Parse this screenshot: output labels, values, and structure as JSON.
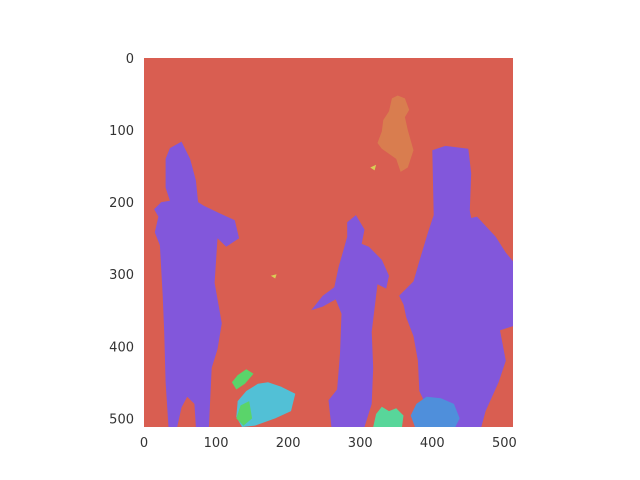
{
  "chart_data": {
    "type": "heatmap",
    "title": "",
    "xlabel": "",
    "ylabel": "",
    "xlim": [
      0,
      512
    ],
    "ylim": [
      512,
      0
    ],
    "grid": false,
    "x_ticks": [
      "0",
      "100",
      "200",
      "300",
      "400",
      "500"
    ],
    "y_ticks": [
      "0",
      "100",
      "200",
      "300",
      "400",
      "500"
    ],
    "x_tick_values": [
      0,
      100,
      200,
      300,
      400,
      500
    ],
    "y_tick_values": [
      0,
      100,
      200,
      300,
      400,
      500
    ],
    "palette": {
      "background": "#d95e51",
      "person": "#8257db",
      "upper_figure": "#d97d4f",
      "object_cyan": "#52c0d6",
      "object_green": "#5ad46a",
      "object_blue": "#4f8fdb",
      "object_mint": "#58d69a",
      "object_yellow": "#d9cf56"
    },
    "regions": [
      {
        "label": "person",
        "color": "person",
        "points": [
          [
            36,
            125
          ],
          [
            52,
            116
          ],
          [
            64,
            140
          ],
          [
            72,
            170
          ],
          [
            75,
            200
          ],
          [
            83,
            205
          ],
          [
            104,
            215
          ],
          [
            126,
            225
          ],
          [
            132,
            250
          ],
          [
            114,
            262
          ],
          [
            102,
            250
          ],
          [
            98,
            312
          ],
          [
            108,
            368
          ],
          [
            102,
            404
          ],
          [
            94,
            430
          ],
          [
            90,
            512
          ],
          [
            72,
            512
          ],
          [
            70,
            480
          ],
          [
            60,
            470
          ],
          [
            52,
            485
          ],
          [
            46,
            512
          ],
          [
            34,
            512
          ],
          [
            30,
            450
          ],
          [
            28,
            380
          ],
          [
            26,
            330
          ],
          [
            22,
            260
          ],
          [
            15,
            242
          ],
          [
            20,
            220
          ],
          [
            14,
            210
          ],
          [
            24,
            200
          ],
          [
            36,
            198
          ],
          [
            30,
            180
          ],
          [
            30,
            140
          ]
        ]
      },
      {
        "label": "person",
        "color": "person",
        "points": [
          [
            282,
            228
          ],
          [
            294,
            218
          ],
          [
            306,
            238
          ],
          [
            302,
            258
          ],
          [
            312,
            262
          ],
          [
            330,
            280
          ],
          [
            340,
            302
          ],
          [
            336,
            320
          ],
          [
            324,
            314
          ],
          [
            322,
            330
          ],
          [
            316,
            380
          ],
          [
            318,
            430
          ],
          [
            316,
            480
          ],
          [
            306,
            512
          ],
          [
            260,
            512
          ],
          [
            256,
            475
          ],
          [
            268,
            460
          ],
          [
            272,
            410
          ],
          [
            274,
            355
          ],
          [
            266,
            335
          ],
          [
            248,
            345
          ],
          [
            232,
            350
          ],
          [
            248,
            330
          ],
          [
            264,
            318
          ],
          [
            270,
            290
          ],
          [
            278,
            262
          ],
          [
            282,
            248
          ]
        ]
      },
      {
        "label": "person",
        "color": "person",
        "points": [
          [
            400,
            128
          ],
          [
            418,
            122
          ],
          [
            450,
            126
          ],
          [
            454,
            160
          ],
          [
            452,
            212
          ],
          [
            454,
            222
          ],
          [
            462,
            220
          ],
          [
            488,
            248
          ],
          [
            502,
            270
          ],
          [
            512,
            282
          ],
          [
            512,
            372
          ],
          [
            494,
            378
          ],
          [
            502,
            420
          ],
          [
            492,
            450
          ],
          [
            474,
            490
          ],
          [
            468,
            512
          ],
          [
            420,
            512
          ],
          [
            398,
            496
          ],
          [
            382,
            462
          ],
          [
            380,
            420
          ],
          [
            374,
            386
          ],
          [
            364,
            360
          ],
          [
            360,
            342
          ],
          [
            354,
            330
          ],
          [
            374,
            310
          ],
          [
            382,
            282
          ],
          [
            394,
            242
          ],
          [
            402,
            218
          ]
        ]
      },
      {
        "label": "upper_figure",
        "color": "upper_figure",
        "points": [
          [
            340,
            74
          ],
          [
            344,
            56
          ],
          [
            352,
            52
          ],
          [
            362,
            56
          ],
          [
            368,
            72
          ],
          [
            362,
            82
          ],
          [
            366,
            100
          ],
          [
            374,
            128
          ],
          [
            366,
            152
          ],
          [
            356,
            158
          ],
          [
            350,
            140
          ],
          [
            330,
            126
          ],
          [
            324,
            118
          ],
          [
            330,
            102
          ],
          [
            332,
            86
          ]
        ]
      },
      {
        "label": "object_cyan",
        "color": "object_cyan",
        "points": [
          [
            130,
            476
          ],
          [
            142,
            462
          ],
          [
            158,
            452
          ],
          [
            172,
            450
          ],
          [
            190,
            456
          ],
          [
            210,
            466
          ],
          [
            204,
            490
          ],
          [
            182,
            500
          ],
          [
            154,
            510
          ],
          [
            136,
            512
          ],
          [
            128,
            498
          ]
        ]
      },
      {
        "label": "object_green",
        "color": "object_green",
        "points": [
          [
            122,
            450
          ],
          [
            130,
            440
          ],
          [
            142,
            432
          ],
          [
            152,
            438
          ],
          [
            140,
            452
          ],
          [
            128,
            460
          ]
        ]
      },
      {
        "label": "object_green",
        "color": "object_green",
        "points": [
          [
            134,
            482
          ],
          [
            146,
            476
          ],
          [
            150,
            500
          ],
          [
            138,
            510
          ],
          [
            128,
            500
          ]
        ]
      },
      {
        "label": "object_blue",
        "color": "object_blue",
        "points": [
          [
            378,
            480
          ],
          [
            392,
            470
          ],
          [
            412,
            472
          ],
          [
            430,
            480
          ],
          [
            438,
            500
          ],
          [
            432,
            512
          ],
          [
            376,
            512
          ],
          [
            370,
            496
          ]
        ]
      },
      {
        "label": "object_mint",
        "color": "object_mint",
        "points": [
          [
            322,
            494
          ],
          [
            330,
            484
          ],
          [
            340,
            490
          ],
          [
            350,
            486
          ],
          [
            360,
            496
          ],
          [
            358,
            512
          ],
          [
            318,
            512
          ]
        ]
      },
      {
        "label": "object_yellow",
        "color": "object_yellow",
        "points": [
          [
            314,
            152
          ],
          [
            322,
            148
          ],
          [
            320,
            156
          ]
        ]
      },
      {
        "label": "object_yellow",
        "color": "object_yellow",
        "points": [
          [
            176,
            302
          ],
          [
            184,
            300
          ],
          [
            182,
            306
          ]
        ]
      }
    ]
  }
}
